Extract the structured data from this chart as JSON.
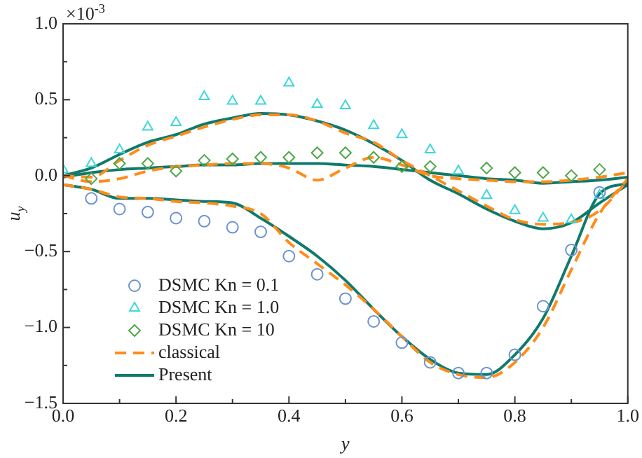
{
  "chart_data": {
    "type": "line",
    "xlabel": "y",
    "ylabel": "u$_{y}$",
    "annotations": [
      "×10$^{-3}$"
    ],
    "x": [
      0,
      0.05,
      0.1,
      0.15,
      0.2,
      0.25,
      0.3,
      0.35,
      0.4,
      0.45,
      0.5,
      0.55,
      0.6,
      0.65,
      0.7,
      0.75,
      0.8,
      0.85,
      0.9,
      0.95,
      1.0
    ],
    "xlim": [
      0,
      1.0
    ],
    "ylim": [
      -1.5,
      1.0
    ],
    "xticks": [
      {
        "value": 0,
        "label": "0.0"
      },
      {
        "value": 0.1,
        "label": null
      },
      {
        "value": 0.2,
        "label": "0.2"
      },
      {
        "value": 0.3,
        "label": null
      },
      {
        "value": 0.4,
        "label": "0.4"
      },
      {
        "value": 0.5,
        "label": null
      },
      {
        "value": 0.6,
        "label": "0.6"
      },
      {
        "value": 0.7,
        "label": null
      },
      {
        "value": 0.8,
        "label": "0.8"
      },
      {
        "value": 0.9,
        "label": null
      },
      {
        "value": 1.0,
        "label": "1.0"
      }
    ],
    "yticks": [
      {
        "value": -1.5,
        "label": "−1.5"
      },
      {
        "value": -1.25,
        "label": null
      },
      {
        "value": -1.0,
        "label": "−1.0"
      },
      {
        "value": -0.75,
        "label": null
      },
      {
        "value": -0.5,
        "label": "−0.5"
      },
      {
        "value": -0.25,
        "label": null
      },
      {
        "value": 0,
        "label": "0.0"
      },
      {
        "value": 0.25,
        "label": null
      },
      {
        "value": 0.5,
        "label": "0.5"
      },
      {
        "value": 0.75,
        "label": null
      },
      {
        "value": 1.0,
        "label": "1.0"
      }
    ],
    "legend": "bottom left",
    "series": [
      {
        "name": "DSMC Kn = 0.1",
        "type": "scatter",
        "marker": "circle",
        "color": "#6b93cf",
        "x": [
          0.05,
          0.1,
          0.15,
          0.2,
          0.25,
          0.3,
          0.35,
          0.4,
          0.45,
          0.5,
          0.55,
          0.6,
          0.65,
          0.7,
          0.75,
          0.8,
          0.85,
          0.9,
          0.95
        ],
        "values": [
          -0.15,
          -0.22,
          -0.24,
          -0.28,
          -0.3,
          -0.34,
          -0.37,
          -0.53,
          -0.65,
          -0.81,
          -0.96,
          -1.1,
          -1.23,
          -1.3,
          -1.3,
          -1.18,
          -0.86,
          -0.49,
          -0.11
        ]
      },
      {
        "name": "DSMC Kn = 1.0",
        "type": "scatter",
        "marker": "triangle",
        "color": "#3fd6de",
        "x": [
          0,
          0.05,
          0.1,
          0.15,
          0.2,
          0.25,
          0.3,
          0.35,
          0.4,
          0.45,
          0.5,
          0.55,
          0.6,
          0.65,
          0.7,
          0.75,
          0.8,
          0.85,
          0.9,
          0.95
        ],
        "values": [
          0.04,
          0.08,
          0.17,
          0.32,
          0.35,
          0.52,
          0.49,
          0.49,
          0.61,
          0.47,
          0.46,
          0.33,
          0.27,
          0.17,
          0.03,
          -0.13,
          -0.23,
          -0.28,
          -0.29,
          -0.13
        ]
      },
      {
        "name": "DSMC Kn = 10",
        "type": "scatter",
        "marker": "diamond",
        "color": "#4fa84a",
        "x": [
          0.05,
          0.1,
          0.15,
          0.2,
          0.25,
          0.3,
          0.35,
          0.4,
          0.45,
          0.5,
          0.55,
          0.6,
          0.65,
          0.7,
          0.75,
          0.8,
          0.85,
          0.9,
          0.95
        ],
        "values": [
          -0.02,
          0.08,
          0.08,
          0.03,
          0.1,
          0.11,
          0.12,
          0.12,
          0.15,
          0.15,
          0.12,
          0.06,
          0.06,
          null,
          0.05,
          0.02,
          0.02,
          0.0,
          0.04
        ]
      },
      {
        "name": "classical",
        "line_style": "dashed",
        "color": "#ff8c1a",
        "values": [
          0.0,
          -0.01,
          0.1,
          0.2,
          0.26,
          0.32,
          0.37,
          0.4,
          0.4,
          0.36,
          0.28,
          0.22,
          0.1,
          0.0,
          -0.1,
          -0.2,
          -0.29,
          -0.32,
          -0.31,
          -0.23,
          -0.03
        ]
      },
      {
        "line_style": "dashed",
        "color": "#ff8c1a",
        "values": [
          0.0,
          -0.04,
          -0.02,
          0.03,
          0.06,
          0.07,
          0.08,
          0.08,
          0.05,
          -0.03,
          0.05,
          0.12,
          0.07,
          0.0,
          -0.02,
          -0.03,
          -0.04,
          -0.04,
          -0.03,
          -0.01,
          0.02
        ]
      },
      {
        "line_style": "dashed",
        "color": "#ff8c1a",
        "values": [
          -0.06,
          -0.09,
          -0.14,
          -0.15,
          -0.17,
          -0.18,
          -0.2,
          -0.25,
          -0.44,
          -0.58,
          -0.72,
          -0.88,
          -1.06,
          -1.23,
          -1.31,
          -1.33,
          -1.23,
          -1.0,
          -0.62,
          -0.25,
          -0.02
        ]
      },
      {
        "name": "Present",
        "line_style": "solid",
        "color": "#0f7a6c",
        "values": [
          0.0,
          0.05,
          0.14,
          0.22,
          0.27,
          0.34,
          0.38,
          0.41,
          0.4,
          0.36,
          0.3,
          0.21,
          0.1,
          -0.03,
          -0.12,
          -0.22,
          -0.3,
          -0.35,
          -0.31,
          -0.18,
          -0.06
        ]
      },
      {
        "line_style": "solid",
        "color": "#0f7a6c",
        "values": [
          -0.01,
          0.02,
          0.04,
          0.05,
          0.06,
          0.07,
          0.07,
          0.08,
          0.08,
          0.08,
          0.07,
          0.06,
          0.04,
          0.02,
          0.0,
          -0.02,
          -0.03,
          -0.05,
          -0.04,
          -0.03,
          -0.01
        ]
      },
      {
        "line_style": "solid",
        "color": "#0f7a6c",
        "values": [
          -0.06,
          -0.09,
          -0.15,
          -0.15,
          -0.16,
          -0.17,
          -0.18,
          -0.28,
          -0.4,
          -0.53,
          -0.69,
          -0.88,
          -1.06,
          -1.21,
          -1.3,
          -1.31,
          -1.18,
          -0.94,
          -0.53,
          -0.12,
          -0.05
        ]
      }
    ]
  }
}
